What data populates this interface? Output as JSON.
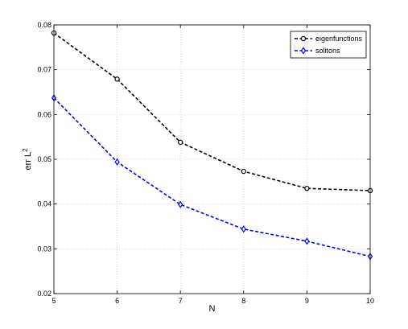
{
  "chart_data": {
    "type": "line",
    "xlabel": "N",
    "ylabel": "err L",
    "ylabel_sup": "2",
    "xlim": [
      5,
      10
    ],
    "ylim": [
      0.02,
      0.08
    ],
    "xticks": [
      "5",
      "6",
      "7",
      "8",
      "9",
      "10"
    ],
    "yticks": [
      "0.02",
      "0.03",
      "0.04",
      "0.05",
      "0.06",
      "0.07",
      "0.08"
    ],
    "grid": true,
    "legend_position": "top-right",
    "x": [
      5,
      6,
      7,
      8,
      9,
      10
    ],
    "series": [
      {
        "name": "eigenfunctions",
        "values": [
          0.0782,
          0.0679,
          0.0538,
          0.0473,
          0.0435,
          0.043
        ],
        "color": "#000000",
        "marker": "circle",
        "line_style": "dashed"
      },
      {
        "name": "solitons",
        "values": [
          0.0637,
          0.0494,
          0.0399,
          0.0344,
          0.0317,
          0.0283
        ],
        "color": "#0000ff",
        "marker": "diamond",
        "line_style": "dashed"
      }
    ]
  }
}
